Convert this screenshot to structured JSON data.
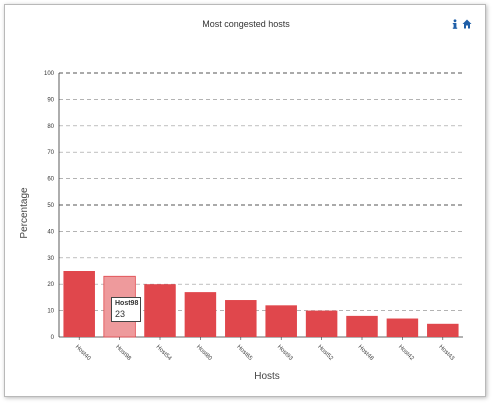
{
  "header": {
    "title": "Most congested hosts"
  },
  "toolbar": {
    "info_icon": "info-icon",
    "home_icon": "home-icon",
    "icon_color": "#1f5fa8"
  },
  "chart_data": {
    "type": "bar",
    "title": "Most congested hosts",
    "xlabel": "Hosts",
    "ylabel": "Percentage",
    "ylim": [
      0,
      100
    ],
    "yticks": [
      0,
      10,
      20,
      30,
      40,
      50,
      60,
      70,
      80,
      90,
      100
    ],
    "grid": true,
    "categories": [
      "Host40",
      "Host98",
      "Host54",
      "Host80",
      "Host65",
      "Host93",
      "Host52",
      "Host48",
      "Host42",
      "Host43"
    ],
    "values": [
      25,
      23,
      20,
      17,
      14,
      12,
      10,
      8,
      7,
      5
    ],
    "bar_color": "#e0474c",
    "highlight_color": "#ee9a9c",
    "highlighted": "Host98"
  },
  "tooltip": {
    "name": "Host98",
    "value": "23"
  }
}
